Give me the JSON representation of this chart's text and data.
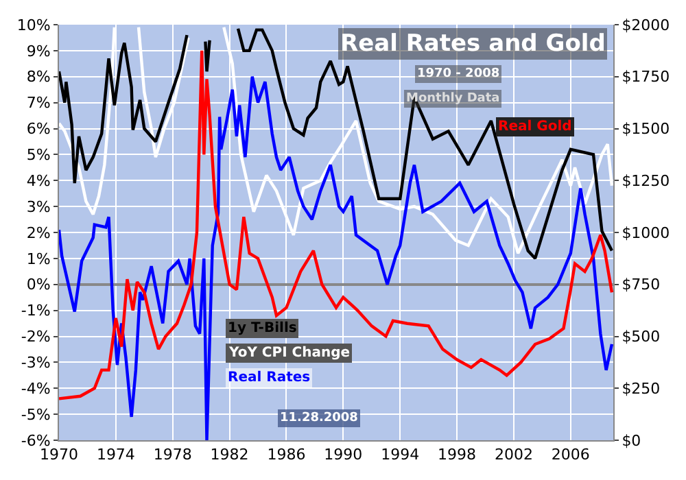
{
  "chart_data": {
    "type": "line",
    "title": "Real Rates and Gold",
    "subtitle": "1970 - 2008",
    "annotations": [
      "Monthly Data",
      "11.28.2008"
    ],
    "xlim": [
      1970,
      2009
    ],
    "xticks": [
      1970,
      1974,
      1978,
      1982,
      1986,
      1990,
      1994,
      1998,
      2002,
      2006
    ],
    "ylim": [
      -6,
      10
    ],
    "yticks": [
      {
        "value": -6,
        "label": "-6%"
      },
      {
        "value": -5,
        "label": "-5%"
      },
      {
        "value": -4,
        "label": "-4%"
      },
      {
        "value": -3,
        "label": "-3%"
      },
      {
        "value": -2,
        "label": "-2%"
      },
      {
        "value": -1,
        "label": "-1%"
      },
      {
        "value": 0,
        "label": "0%"
      },
      {
        "value": 1,
        "label": "1%"
      },
      {
        "value": 2,
        "label": "2%"
      },
      {
        "value": 3,
        "label": "3%"
      },
      {
        "value": 4,
        "label": "4%"
      },
      {
        "value": 5,
        "label": "5%"
      },
      {
        "value": 6,
        "label": "6%"
      },
      {
        "value": 7,
        "label": "7%"
      },
      {
        "value": 8,
        "label": "8%"
      },
      {
        "value": 9,
        "label": "9%"
      },
      {
        "value": 10,
        "label": "10%"
      }
    ],
    "y2lim": [
      0,
      2000
    ],
    "y2ticks": [
      {
        "value": 0,
        "label": "$0"
      },
      {
        "value": 250,
        "label": "$250"
      },
      {
        "value": 500,
        "label": "$500"
      },
      {
        "value": 750,
        "label": "$750"
      },
      {
        "value": 1000,
        "label": "$1000"
      },
      {
        "value": 1250,
        "label": "$1250"
      },
      {
        "value": 1500,
        "label": "$1500"
      },
      {
        "value": 1750,
        "label": "$1750"
      },
      {
        "value": 2000,
        "label": "$2000"
      }
    ],
    "grid": true,
    "legend": false,
    "marker": "none",
    "line_style": "solid",
    "series": [
      {
        "name": "YoY CPI Change",
        "color": "#ffffff",
        "x": [
          1970.0,
          1970.4,
          1970.9,
          1971.4,
          1971.9,
          1972.4,
          1972.8,
          1973.2,
          1973.7,
          1973.9,
          1974.0,
          1975.5,
          1975.6,
          1976.0,
          1976.5,
          1976.8,
          1977.4,
          1978.1,
          1978.5,
          1979.1,
          1979.3,
          1981.5,
          1981.6,
          1982.2,
          1982.8,
          1983.7,
          1984.6,
          1985.3,
          1986.5,
          1987.2,
          1988.4,
          1989.1,
          1989.8,
          1990.9,
          1991.9,
          1992.5,
          1994.0,
          1995.0,
          1996.3,
          1997.9,
          1998.8,
          2000.4,
          2001.6,
          2002.3,
          2003.9,
          2005.4,
          2006.0,
          2006.3,
          2007.0,
          2008.2,
          2008.6,
          2008.9
        ],
        "values": [
          6.2,
          5.9,
          5.2,
          4.5,
          3.2,
          2.7,
          3.4,
          4.6,
          7.8,
          9.9,
          null,
          null,
          9.9,
          7.4,
          6.0,
          4.9,
          6.0,
          7.0,
          8.0,
          9.5,
          null,
          null,
          9.9,
          8.5,
          5.0,
          2.8,
          4.2,
          3.6,
          1.9,
          3.7,
          4.0,
          4.7,
          5.3,
          6.3,
          3.9,
          3.2,
          2.9,
          3.0,
          2.7,
          1.7,
          1.5,
          3.3,
          2.6,
          1.2,
          3.1,
          4.8,
          3.8,
          4.5,
          3.1,
          5.0,
          5.4,
          3.8
        ]
      },
      {
        "name": "1y T-Bills",
        "color": "#000000",
        "x": [
          1970.0,
          1970.4,
          1970.5,
          1970.9,
          1971.1,
          1971.4,
          1971.9,
          1972.4,
          1973.0,
          1973.5,
          1973.9,
          1974.4,
          1974.6,
          1975.1,
          1975.2,
          1975.7,
          1976.0,
          1976.8,
          1977.7,
          1978.5,
          1979.0,
          1979.2,
          1980.2,
          1980.3,
          1980.4,
          1980.6,
          1980.7,
          1982.5,
          1982.6,
          1983.0,
          1983.4,
          1983.9,
          1984.3,
          1985.0,
          1985.3,
          1985.9,
          1986.5,
          1987.2,
          1987.5,
          1988.1,
          1988.4,
          1989.1,
          1989.7,
          1990.0,
          1990.3,
          1991.4,
          1992.5,
          1994.0,
          1995.0,
          1996.3,
          1997.4,
          1998.8,
          2000.4,
          2002.0,
          2003.0,
          2003.5,
          2005.4,
          2006.0,
          2007.6,
          2008.2,
          2008.9
        ],
        "values": [
          8.2,
          7.0,
          7.8,
          6.15,
          3.9,
          5.7,
          4.4,
          4.9,
          5.8,
          8.7,
          6.9,
          8.9,
          9.3,
          7.6,
          5.95,
          7.1,
          6.0,
          5.5,
          7.0,
          8.3,
          9.6,
          null,
          null,
          9.35,
          8.2,
          9.4,
          null,
          null,
          9.85,
          9.0,
          9.0,
          9.8,
          9.8,
          9.0,
          8.3,
          7.0,
          6.0,
          5.75,
          6.4,
          6.8,
          7.8,
          8.6,
          7.7,
          7.8,
          8.4,
          5.95,
          3.3,
          3.3,
          7.2,
          5.6,
          5.9,
          4.6,
          6.3,
          3.1,
          1.3,
          1.0,
          4.4,
          5.2,
          5.0,
          2.05,
          1.3
        ]
      },
      {
        "name": "Real Rates",
        "color": "#0000ff",
        "x": [
          1970.0,
          1970.2,
          1971.1,
          1971.6,
          1972.4,
          1972.5,
          1973.3,
          1973.5,
          1973.8,
          1974.1,
          1974.4,
          1974.7,
          1975.1,
          1975.4,
          1975.7,
          1975.9,
          1976.5,
          1977.3,
          1977.7,
          1978.4,
          1979.0,
          1979.2,
          1979.6,
          1979.9,
          1980.2,
          1980.4,
          1980.7,
          1980.8,
          1981.2,
          1981.3,
          1981.4,
          1981.8,
          1982.2,
          1982.5,
          1982.7,
          1983.1,
          1983.6,
          1984.0,
          1984.5,
          1985.0,
          1985.3,
          1985.6,
          1986.2,
          1986.8,
          1987.2,
          1987.8,
          1988.4,
          1989.1,
          1989.7,
          1990.0,
          1990.6,
          1990.9,
          1991.9,
          1992.4,
          1993.1,
          1993.7,
          1994.0,
          1994.7,
          1995.0,
          1995.6,
          1996.9,
          1998.2,
          1999.2,
          2000.1,
          2001.0,
          2001.6,
          2002.1,
          2002.6,
          2003.2,
          2003.5,
          2004.4,
          2005.1,
          2005.7,
          2006.0,
          2006.7,
          2007.0,
          2007.6,
          2008.1,
          2008.5,
          2008.9
        ],
        "values": [
          2.1,
          1.1,
          -1.05,
          0.9,
          1.8,
          2.3,
          2.2,
          2.6,
          -1.0,
          -3.1,
          -1.5,
          -2.8,
          -5.1,
          -3.3,
          -0.3,
          -0.6,
          0.7,
          -1.5,
          0.5,
          0.9,
          0.0,
          1.0,
          -1.6,
          -1.9,
          1.0,
          -6.0,
          -0.3,
          1.5,
          2.75,
          6.45,
          5.2,
          6.3,
          7.5,
          5.7,
          6.9,
          4.9,
          8.0,
          7.0,
          7.8,
          5.8,
          4.9,
          4.4,
          4.9,
          3.6,
          3.0,
          2.5,
          3.6,
          4.6,
          3.0,
          2.8,
          3.4,
          1.9,
          1.5,
          1.3,
          0.0,
          1.1,
          1.5,
          3.9,
          4.6,
          2.8,
          3.2,
          3.9,
          2.8,
          3.2,
          1.5,
          0.8,
          0.15,
          -0.3,
          -1.7,
          -0.9,
          -0.5,
          0.0,
          0.8,
          1.2,
          3.7,
          2.7,
          1.0,
          -1.9,
          -3.3,
          -2.3
        ]
      },
      {
        "name": "Real Gold",
        "color": "#ff0000",
        "axis": "y2",
        "x": [
          1970.0,
          1971.5,
          1972.5,
          1973.0,
          1973.5,
          1974.0,
          1974.4,
          1974.8,
          1975.2,
          1975.5,
          1976.0,
          1976.5,
          1977.0,
          1977.5,
          1978.3,
          1978.8,
          1979.3,
          1979.7,
          1980.05,
          1980.2,
          1980.4,
          1980.6,
          1981.0,
          1981.5,
          1982.0,
          1982.5,
          1983.0,
          1983.4,
          1984.0,
          1985.0,
          1985.3,
          1986.0,
          1987.0,
          1987.9,
          1988.5,
          1989.5,
          1990.0,
          1991.0,
          1992.0,
          1993.0,
          1993.5,
          1994.5,
          1996.0,
          1997.0,
          1998.0,
          1999.0,
          1999.7,
          2001.0,
          2001.5,
          2002.5,
          2003.5,
          2004.5,
          2005.5,
          2006.0,
          2006.3,
          2007.0,
          2007.5,
          2008.1,
          2008.4,
          2008.9
        ],
        "values": [
          200,
          212,
          250,
          338,
          338,
          588,
          450,
          775,
          625,
          762,
          712,
          562,
          438,
          500,
          562,
          650,
          750,
          1000,
          1875,
          1375,
          1738,
          1562,
          1125,
          938,
          750,
          725,
          1075,
          900,
          875,
          688,
          600,
          638,
          812,
          912,
          750,
          638,
          688,
          625,
          550,
          500,
          575,
          562,
          550,
          438,
          388,
          350,
          388,
          338,
          312,
          375,
          462,
          488,
          538,
          725,
          850,
          812,
          875,
          988,
          912,
          712
        ]
      }
    ]
  }
}
